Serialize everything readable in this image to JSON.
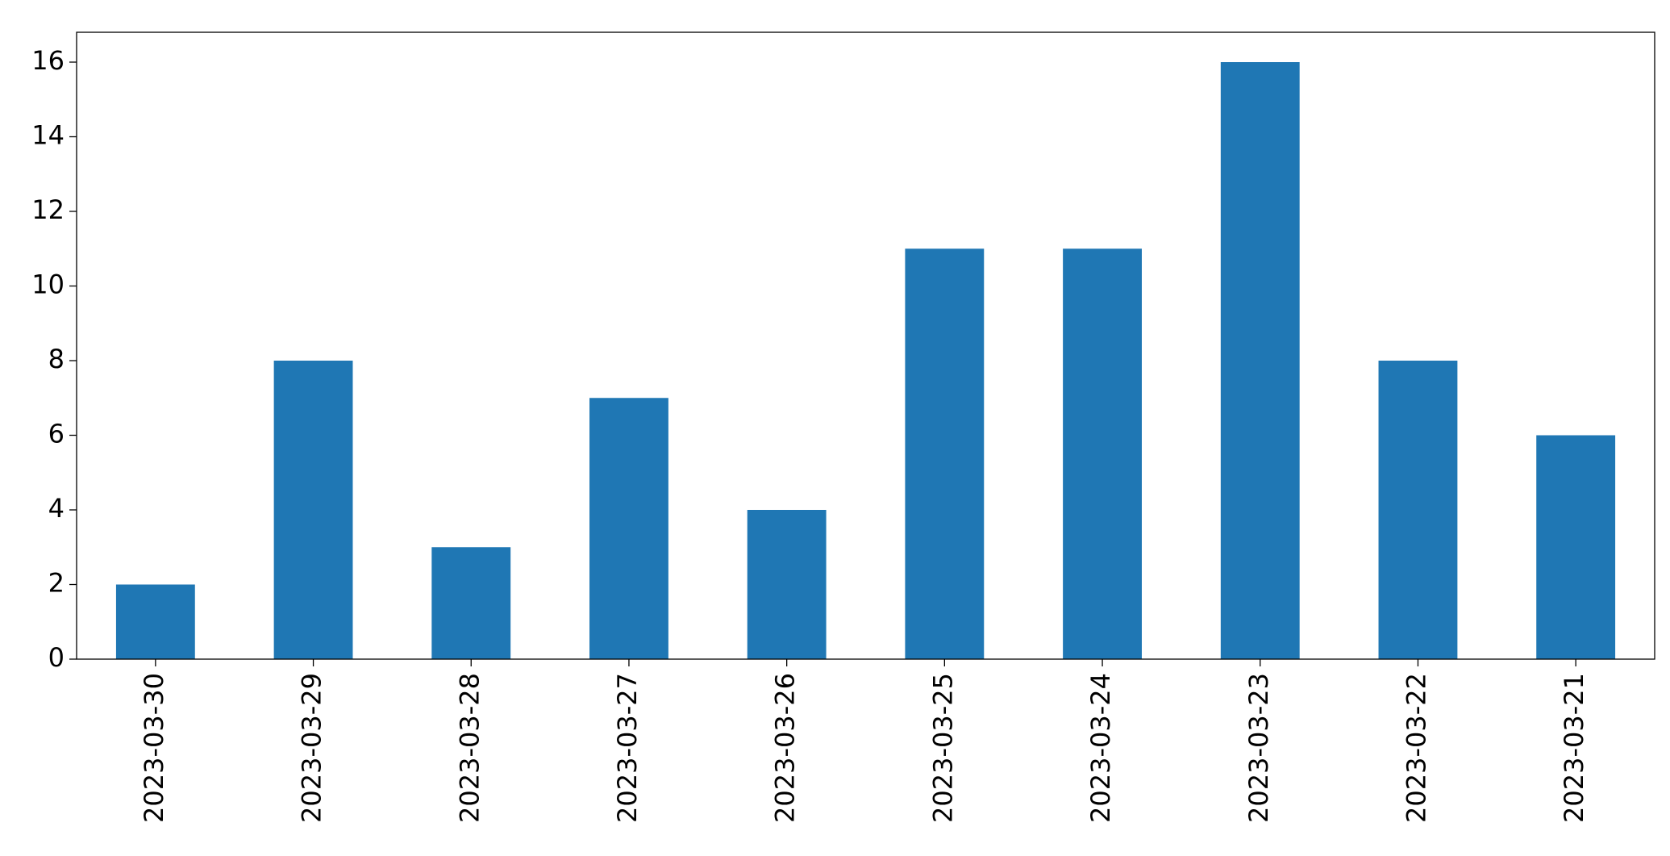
{
  "chart_data": {
    "type": "bar",
    "categories": [
      "2023-03-30",
      "2023-03-29",
      "2023-03-28",
      "2023-03-27",
      "2023-03-26",
      "2023-03-25",
      "2023-03-24",
      "2023-03-23",
      "2023-03-22",
      "2023-03-21"
    ],
    "values": [
      2,
      8,
      3,
      7,
      4,
      11,
      11,
      16,
      8,
      6
    ],
    "color": "#1f77b4",
    "ylim": [
      0,
      16.8
    ],
    "yticks": [
      0,
      2,
      4,
      6,
      8,
      10,
      12,
      14,
      16
    ],
    "grid": false
  }
}
